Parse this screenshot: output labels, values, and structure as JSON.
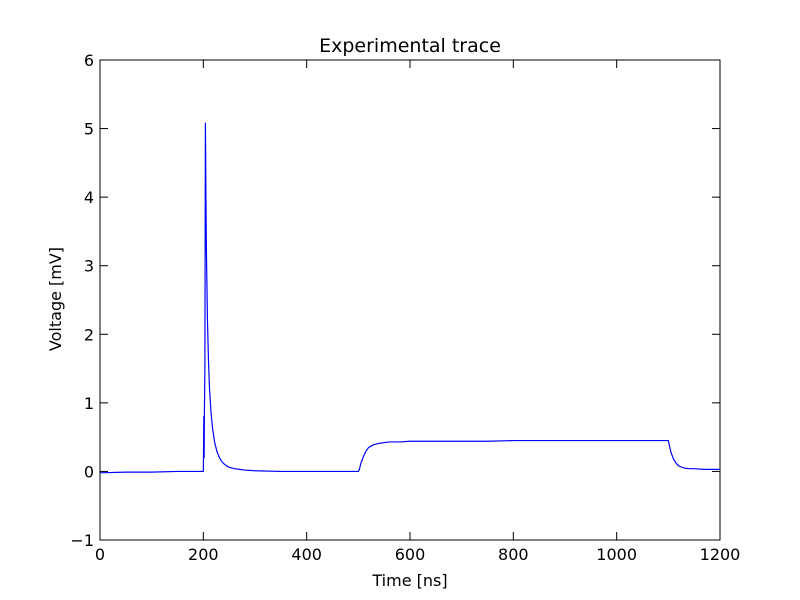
{
  "chart_data": {
    "type": "line",
    "title": "Experimental trace",
    "xlabel": "Time [ns]",
    "ylabel": "Voltage [mV]",
    "xlim": [
      0,
      1200
    ],
    "ylim": [
      -1,
      6
    ],
    "xticks": [
      0,
      200,
      400,
      600,
      800,
      1000,
      1200
    ],
    "yticks": [
      -1,
      0,
      1,
      2,
      3,
      4,
      5,
      6
    ],
    "xtick_labels": [
      "0",
      "200",
      "400",
      "600",
      "800",
      "1000",
      "1200"
    ],
    "ytick_labels": [
      "−1",
      "0",
      "1",
      "2",
      "3",
      "4",
      "5",
      "6"
    ],
    "grid": false,
    "legend": "none",
    "series": [
      {
        "color": "#0000ff",
        "x": [
          0,
          50,
          100,
          150,
          199,
          200,
          201,
          201.5,
          202,
          203,
          204,
          204.5,
          205,
          206,
          208,
          210,
          212,
          215,
          218,
          222,
          226,
          230,
          235,
          240,
          245,
          250,
          260,
          270,
          280,
          300,
          350,
          400,
          450,
          500,
          502,
          505,
          510,
          515,
          520,
          530,
          540,
          550,
          560,
          580,
          600,
          650,
          700,
          750,
          800,
          850,
          900,
          950,
          1000,
          1050,
          1100,
          1102,
          1105,
          1110,
          1115,
          1120,
          1130,
          1140,
          1150,
          1170,
          1200
        ],
        "y": [
          -0.02,
          -0.01,
          -0.01,
          0.0,
          0.0,
          0.0,
          0.8,
          0.2,
          0.8,
          1.5,
          5.08,
          4.6,
          4.0,
          3.2,
          2.2,
          1.6,
          1.2,
          0.85,
          0.62,
          0.42,
          0.3,
          0.22,
          0.15,
          0.11,
          0.08,
          0.06,
          0.04,
          0.03,
          0.02,
          0.01,
          0.0,
          0.0,
          0.0,
          0.0,
          0.03,
          0.12,
          0.22,
          0.3,
          0.35,
          0.39,
          0.41,
          0.42,
          0.43,
          0.43,
          0.44,
          0.44,
          0.44,
          0.44,
          0.45,
          0.45,
          0.45,
          0.45,
          0.45,
          0.45,
          0.45,
          0.38,
          0.28,
          0.18,
          0.12,
          0.08,
          0.05,
          0.04,
          0.04,
          0.03,
          0.03
        ]
      }
    ]
  }
}
